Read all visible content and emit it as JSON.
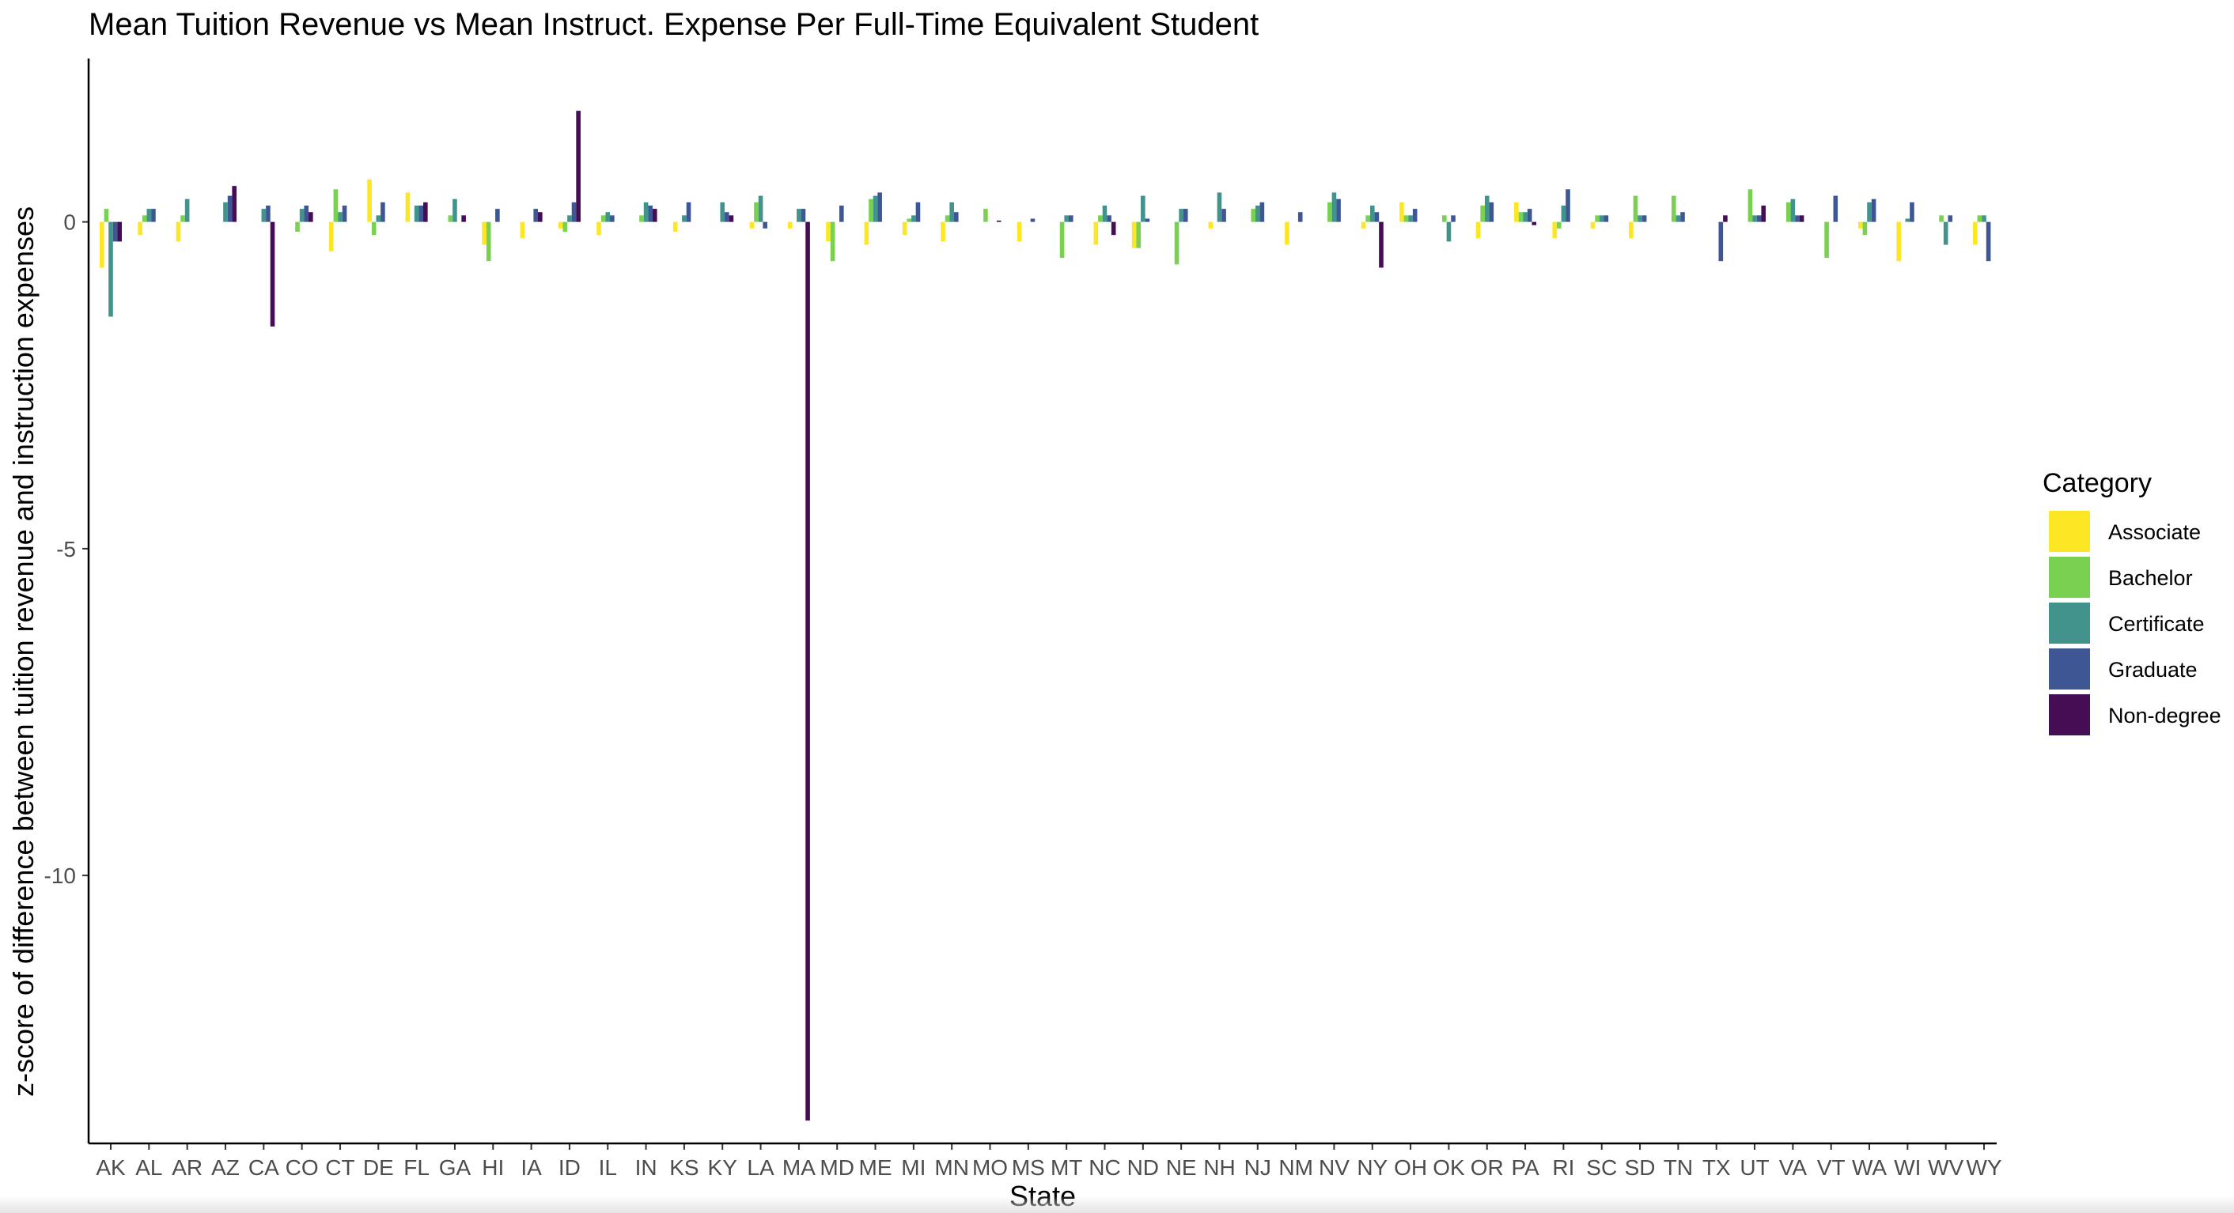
{
  "chart_data": {
    "type": "bar",
    "title": "Mean Tuition Revenue vs Mean Instruct. Expense Per Full-Time Equivalent Student",
    "xlabel": "State",
    "ylabel": "z-score of difference between tuition revenue and instruction expenses",
    "ylim": [
      -14.1,
      2.5
    ],
    "yticks": [
      0,
      -5,
      -10
    ],
    "grid": false,
    "legend_title": "Category",
    "legend_position": "right",
    "categories": [
      "AK",
      "AL",
      "AR",
      "AZ",
      "CA",
      "CO",
      "CT",
      "DE",
      "FL",
      "GA",
      "HI",
      "IA",
      "ID",
      "IL",
      "IN",
      "KS",
      "KY",
      "LA",
      "MA",
      "MD",
      "ME",
      "MI",
      "MN",
      "MO",
      "MS",
      "MT",
      "NC",
      "ND",
      "NE",
      "NH",
      "NJ",
      "NM",
      "NV",
      "NY",
      "OH",
      "OK",
      "OR",
      "PA",
      "RI",
      "SC",
      "SD",
      "TN",
      "TX",
      "UT",
      "VA",
      "VT",
      "WA",
      "WI",
      "WV",
      "WY"
    ],
    "series": [
      {
        "name": "Associate",
        "color": "#FDE725",
        "values": [
          -0.7,
          -0.2,
          -0.3,
          0,
          0,
          0,
          -0.45,
          0.65,
          0.45,
          0,
          -0.35,
          -0.25,
          -0.1,
          -0.2,
          0,
          -0.15,
          0,
          -0.1,
          -0.1,
          -0.3,
          -0.35,
          -0.2,
          -0.3,
          0,
          -0.3,
          0,
          -0.35,
          -0.4,
          0,
          -0.1,
          0,
          -0.35,
          0,
          -0.1,
          0.3,
          0,
          -0.25,
          0.3,
          -0.25,
          -0.1,
          -0.25,
          0,
          0,
          0,
          0,
          0,
          -0.1,
          -0.6,
          0,
          -0.35
        ]
      },
      {
        "name": "Bachelor",
        "color": "#7AD151",
        "values": [
          0.2,
          0.1,
          0.1,
          0,
          0,
          -0.15,
          0.5,
          -0.2,
          0,
          0.1,
          -0.6,
          0,
          -0.15,
          0.1,
          0.1,
          0,
          0,
          0.3,
          0,
          -0.6,
          0.35,
          0.05,
          0.1,
          0.2,
          0,
          -0.55,
          0.1,
          -0.4,
          -0.65,
          0,
          0.2,
          0,
          0.3,
          0.1,
          0.1,
          0.1,
          0.25,
          0.15,
          -0.1,
          0.1,
          0.4,
          0.4,
          0,
          0.5,
          0.3,
          -0.55,
          -0.2,
          0,
          0.1,
          0.1
        ]
      },
      {
        "name": "Certificate",
        "color": "#42938C",
        "values": [
          -1.45,
          0.2,
          0.35,
          0.3,
          0.2,
          0.2,
          0.15,
          0.1,
          0.25,
          0.35,
          0,
          0,
          0.1,
          0.15,
          0.3,
          0.1,
          0.3,
          0.4,
          0.2,
          0,
          0.4,
          0.1,
          0.3,
          0,
          0,
          0.1,
          0.25,
          0.4,
          0.2,
          0.45,
          0.25,
          0,
          0.45,
          0.25,
          0.1,
          -0.3,
          0.4,
          0.15,
          0.25,
          0.1,
          0.1,
          0.1,
          0,
          0.1,
          0.35,
          0,
          0.3,
          0.05,
          -0.35,
          0.1
        ]
      },
      {
        "name": "Graduate",
        "color": "#3E5794",
        "values": [
          -0.3,
          0.2,
          0,
          0.4,
          0.25,
          0.25,
          0.25,
          0.3,
          0.25,
          0,
          0.2,
          0.2,
          0.3,
          0.1,
          0.25,
          0.3,
          0.15,
          -0.1,
          0.2,
          0.25,
          0.45,
          0.3,
          0.15,
          0,
          0.05,
          0.1,
          0.1,
          0.05,
          0.2,
          0.2,
          0.3,
          0.15,
          0.35,
          0.15,
          0.2,
          0.1,
          0.3,
          0.2,
          0.5,
          0.1,
          0.1,
          0.15,
          -0.6,
          0.1,
          0.1,
          0.4,
          0.35,
          0.3,
          0.1,
          -0.6
        ]
      },
      {
        "name": "Non-degree",
        "color": "#440D54",
        "values": [
          -0.3,
          0,
          0,
          0.55,
          -1.6,
          0.15,
          0,
          0,
          0.3,
          0.1,
          0,
          0.15,
          1.7,
          0,
          0.2,
          0,
          0.1,
          0,
          -13.75,
          0,
          0,
          0,
          0,
          0.02,
          0,
          0,
          -0.2,
          0,
          0,
          0,
          0,
          0,
          0,
          -0.7,
          0,
          0,
          0,
          -0.05,
          0,
          0,
          0,
          0,
          0.1,
          0.25,
          0.1,
          0,
          0,
          0,
          0,
          0
        ]
      }
    ]
  }
}
